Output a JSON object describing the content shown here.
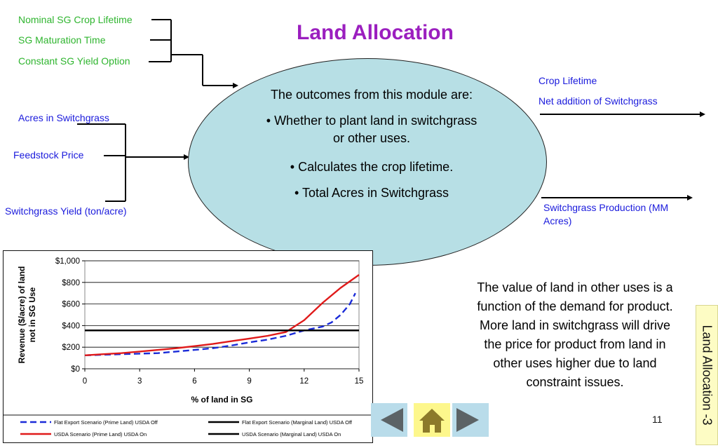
{
  "title": "Land Allocation",
  "inputs_top": [
    "Nominal SG Crop Lifetime",
    "SG Maturation Time",
    "Constant SG Yield Option"
  ],
  "inputs_left": [
    "Acres in Switchgrass",
    "Feedstock Price",
    "Switchgrass Yield (ton/acre)"
  ],
  "outputs_top": [
    "Crop Lifetime",
    "Net addition of Switchgrass"
  ],
  "outputs_bottom": [
    "Switchgrass Production (MM",
    "Acres)"
  ],
  "ellipse": {
    "heading": "The outcomes from this module are:",
    "bullet1_line1": "• Whether to plant land in switchgrass",
    "bullet1_line2": "or other uses.",
    "bullet2": "• Calculates the crop lifetime.",
    "bullet3": "• Total Acres in Switchgrass"
  },
  "value_text": [
    "The value of land in other uses is a",
    "function of the demand for product.",
    "More land in switchgrass will drive",
    "the price for product from land in",
    "other uses higher due to land",
    "constraint issues."
  ],
  "side_tab": "Land Allocation -3",
  "page_number": "11",
  "colors": {
    "title": "#9b1fbf",
    "green_text": "#2fb52f",
    "blue_text": "#1a1adc",
    "ellipse_fill": "#b7dfe5",
    "nav_bg": "#b9dcea",
    "home_bg": "#fdf78c"
  },
  "nav": {
    "prev_icon": "triangle-left-icon",
    "home_icon": "house-icon",
    "next_icon": "triangle-right-icon"
  },
  "chart_data": {
    "type": "line",
    "xlabel": "% of land in SG",
    "ylabel_line1": "Revenue ($/acre) of land",
    "ylabel_line2": "not in SG Use",
    "xlim": [
      0,
      15
    ],
    "ylim": [
      0,
      1000
    ],
    "x_ticks": [
      "0",
      "3",
      "6",
      "9",
      "12",
      "15"
    ],
    "y_ticks": [
      "$0",
      "$200",
      "$400",
      "$600",
      "$800",
      "$1,000"
    ],
    "grid": "horizontal",
    "legend_position": "bottom",
    "series": [
      {
        "name": "Flat Export Scenario (Prime Land) USDA Off",
        "color": "#1a2bd8",
        "dash": "dashed",
        "x": [
          0,
          1,
          2,
          3,
          4,
          5,
          6,
          7,
          8,
          9,
          10,
          11,
          12,
          13,
          13.5,
          14,
          14.5,
          14.8
        ],
        "y": [
          125,
          130,
          135,
          140,
          145,
          160,
          175,
          190,
          215,
          245,
          270,
          305,
          355,
          390,
          430,
          500,
          600,
          700
        ]
      },
      {
        "name": "Flat Export Scenario (Marginal Land) USDA Off",
        "color": "#000000",
        "dash": "solid",
        "x": [
          0,
          15
        ],
        "y": [
          355,
          355
        ]
      },
      {
        "name": "USDA Scenario (Prime Land) USDA On",
        "color": "#e01a1a",
        "dash": "solid",
        "x": [
          0,
          1,
          2,
          3,
          4,
          5,
          6,
          7,
          8,
          9,
          10,
          11,
          12,
          13,
          14,
          15
        ],
        "y": [
          125,
          135,
          145,
          160,
          175,
          190,
          210,
          230,
          255,
          280,
          305,
          340,
          450,
          610,
          750,
          870
        ]
      },
      {
        "name": "USDA Scenario (Marginal Land) USDA On",
        "color": "#000000",
        "dash": "solid",
        "x": [
          0,
          15
        ],
        "y": [
          355,
          355
        ]
      }
    ]
  }
}
